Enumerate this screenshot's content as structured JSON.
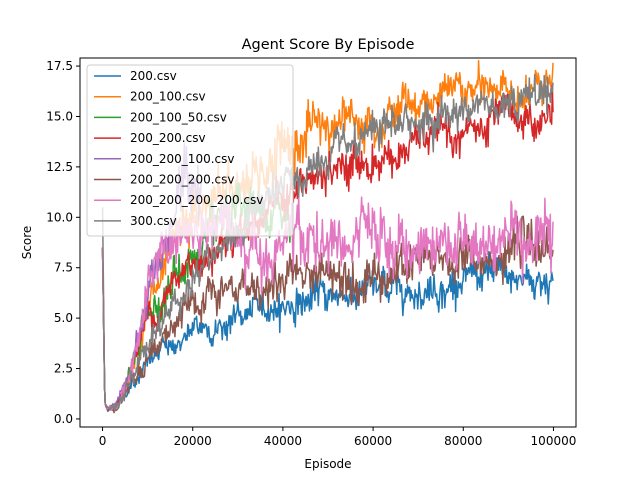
{
  "chart_data": {
    "type": "line",
    "title": "Agent Score By Episode",
    "xlabel": "Episode",
    "ylabel": "Score",
    "xlim": [
      -5000,
      105000
    ],
    "ylim": [
      -0.4,
      17.9
    ],
    "xticks": [
      0,
      20000,
      40000,
      60000,
      80000,
      100000
    ],
    "xtick_labels": [
      "0",
      "20000",
      "40000",
      "60000",
      "80000",
      "100000"
    ],
    "yticks": [
      0.0,
      2.5,
      5.0,
      7.5,
      10.0,
      12.5,
      15.0,
      17.5
    ],
    "ytick_labels": [
      "0.0",
      "2.5",
      "5.0",
      "7.5",
      "10.0",
      "12.5",
      "15.0",
      "17.5"
    ],
    "grid": false,
    "legend_position": "upper-left",
    "series": [
      {
        "name": "200.csv",
        "color": "#1f77b4",
        "x_end": 100000,
        "x": [
          0,
          500,
          1000,
          3000,
          5000,
          7000,
          10000,
          15000,
          20000,
          30000,
          40000,
          50000,
          60000,
          70000,
          80000,
          90000,
          100000
        ],
        "y": [
          8.5,
          0.8,
          0.5,
          0.6,
          1.3,
          2.0,
          2.8,
          3.6,
          4.2,
          5.0,
          5.7,
          6.1,
          6.4,
          6.6,
          6.8,
          6.9,
          7.0
        ],
        "noise": [
          0,
          0,
          0.05,
          0.1,
          0.15,
          0.2,
          0.25,
          0.3,
          0.35,
          0.35,
          0.4,
          0.4,
          0.4,
          0.4,
          0.45,
          0.45,
          0.45
        ]
      },
      {
        "name": "200_100.csv",
        "color": "#ff7f0e",
        "x_end": 100000,
        "x": [
          0,
          500,
          1000,
          3000,
          5000,
          7000,
          10000,
          15000,
          20000,
          25000,
          30000,
          35000,
          40000,
          50000,
          60000,
          70000,
          80000,
          90000,
          100000
        ],
        "y": [
          8.5,
          0.8,
          0.5,
          0.6,
          1.5,
          3.0,
          5.5,
          7.5,
          9.5,
          10.5,
          11.5,
          12.5,
          13.5,
          14.5,
          15.3,
          15.8,
          16.2,
          16.3,
          16.3
        ],
        "noise": [
          0,
          0,
          0.05,
          0.1,
          0.2,
          0.3,
          0.45,
          0.55,
          0.65,
          0.7,
          0.75,
          0.8,
          0.8,
          0.6,
          0.5,
          0.45,
          0.45,
          0.45,
          0.45
        ]
      },
      {
        "name": "200_100_50.csv",
        "color": "#2ca02c",
        "x_end": 42000,
        "x": [
          0,
          500,
          1000,
          3000,
          5000,
          7000,
          10000,
          15000,
          20000,
          25000,
          30000,
          35000,
          42000
        ],
        "y": [
          8.5,
          0.8,
          0.5,
          0.6,
          1.5,
          3.0,
          5.2,
          6.8,
          8.0,
          8.8,
          9.5,
          9.8,
          10.0
        ],
        "noise": [
          0,
          0,
          0.05,
          0.1,
          0.2,
          0.3,
          0.45,
          0.55,
          0.6,
          0.6,
          0.6,
          0.6,
          0.6
        ]
      },
      {
        "name": "200_200.csv",
        "color": "#d62728",
        "x_end": 100000,
        "x": [
          0,
          500,
          1000,
          3000,
          5000,
          7000,
          10000,
          15000,
          20000,
          30000,
          40000,
          50000,
          60000,
          70000,
          80000,
          90000,
          100000
        ],
        "y": [
          8.5,
          0.8,
          0.5,
          0.6,
          1.5,
          3.0,
          5.0,
          6.5,
          7.8,
          9.5,
          11.0,
          12.0,
          12.8,
          13.6,
          14.1,
          14.5,
          14.8
        ],
        "noise": [
          0,
          0,
          0.05,
          0.1,
          0.2,
          0.3,
          0.4,
          0.45,
          0.45,
          0.45,
          0.5,
          0.5,
          0.5,
          0.5,
          0.5,
          0.5,
          0.5
        ]
      },
      {
        "name": "200_200_100.csv",
        "color": "#9467bd",
        "x_end": 22000,
        "x": [
          0,
          500,
          1000,
          3000,
          5000,
          7000,
          10000,
          15000,
          18000,
          22000
        ],
        "y": [
          8.5,
          0.8,
          0.5,
          0.6,
          1.5,
          3.2,
          6.0,
          9.5,
          11.5,
          12.5
        ],
        "noise": [
          0,
          0,
          0.05,
          0.1,
          0.2,
          0.3,
          0.5,
          0.7,
          0.8,
          0.8
        ]
      },
      {
        "name": "200_200_200.csv",
        "color": "#8c564b",
        "x_end": 100000,
        "x": [
          0,
          500,
          1000,
          3000,
          5000,
          7000,
          10000,
          15000,
          20000,
          30000,
          40000,
          50000,
          60000,
          70000,
          80000,
          90000,
          100000
        ],
        "y": [
          8.5,
          0.8,
          0.5,
          0.6,
          1.3,
          2.2,
          3.3,
          4.5,
          5.3,
          6.3,
          7.0,
          7.3,
          7.5,
          7.6,
          7.8,
          8.0,
          8.5
        ],
        "noise": [
          0,
          0,
          0.05,
          0.1,
          0.15,
          0.25,
          0.3,
          0.4,
          0.45,
          0.5,
          0.55,
          0.55,
          0.55,
          0.55,
          0.55,
          0.55,
          0.6
        ]
      },
      {
        "name": "200_200_200_200.csv",
        "color": "#e377c2",
        "x_end": 100000,
        "x": [
          0,
          500,
          1000,
          3000,
          5000,
          7000,
          10000,
          12000,
          15000,
          20000,
          30000,
          40000,
          50000,
          60000,
          70000,
          80000,
          90000,
          100000
        ],
        "y": [
          8.5,
          0.8,
          0.5,
          0.6,
          1.5,
          3.2,
          6.0,
          7.5,
          8.5,
          9.2,
          9.0,
          8.8,
          8.6,
          8.5,
          8.6,
          8.8,
          9.3,
          9.8
        ],
        "noise": [
          0,
          0,
          0.05,
          0.1,
          0.2,
          0.3,
          0.5,
          0.7,
          0.75,
          0.75,
          0.75,
          0.75,
          0.75,
          0.75,
          0.75,
          0.75,
          0.8,
          0.8
        ]
      },
      {
        "name": "300.csv",
        "color": "#7f7f7f",
        "x_end": 100000,
        "x": [
          0,
          500,
          1000,
          3000,
          5000,
          7000,
          10000,
          15000,
          20000,
          30000,
          40000,
          50000,
          60000,
          70000,
          80000,
          90000,
          100000
        ],
        "y": [
          10.5,
          0.8,
          0.5,
          0.6,
          1.4,
          2.5,
          3.8,
          5.5,
          7.0,
          9.4,
          11.3,
          12.7,
          13.8,
          14.8,
          15.5,
          16.0,
          16.3
        ],
        "noise": [
          0,
          0,
          0.05,
          0.1,
          0.2,
          0.25,
          0.35,
          0.4,
          0.45,
          0.45,
          0.45,
          0.45,
          0.45,
          0.45,
          0.45,
          0.45,
          0.45
        ]
      }
    ]
  }
}
